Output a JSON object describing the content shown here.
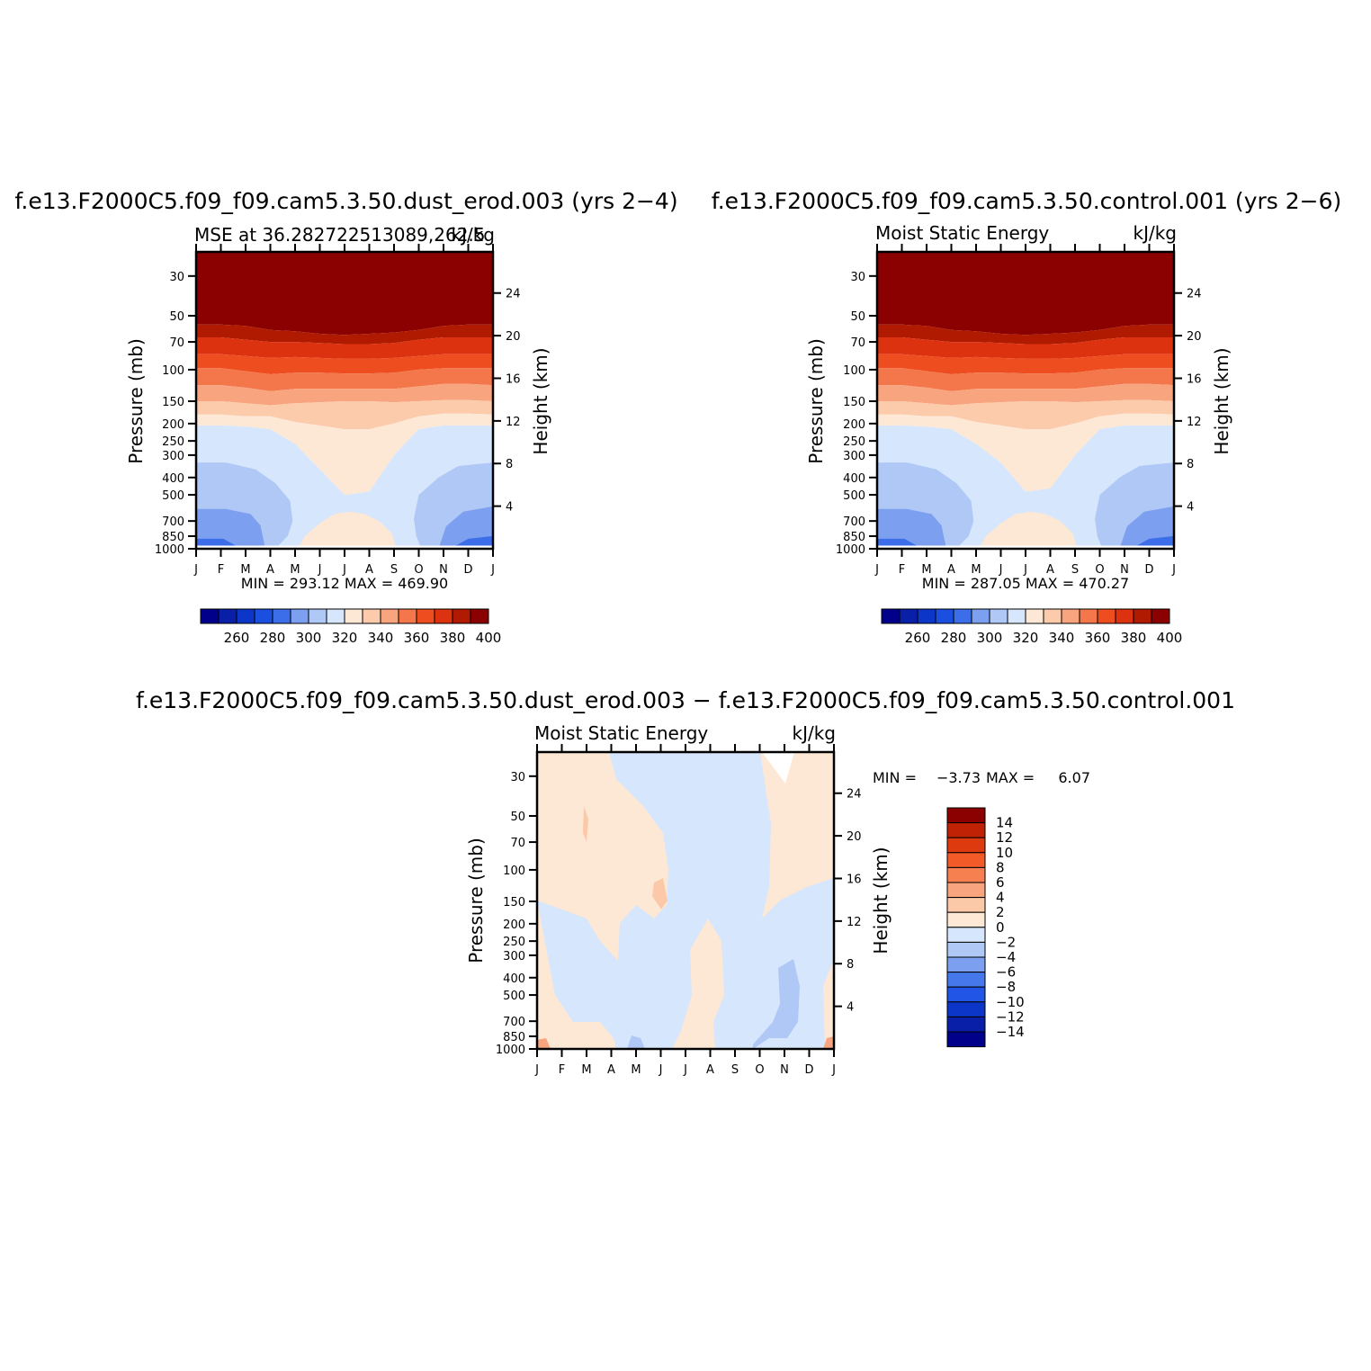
{
  "chart_data": [
    {
      "type": "heatmap",
      "title": "f.e13.F2000C5.f09_f09.cam5.3.50.dust_erod.003 (yrs 2−4)",
      "subtitle_left": "MSE at 36.282722513089,262.5",
      "subtitle_right": "kJ/kg",
      "xlabel": "",
      "ylabel": "Pressure (mb)",
      "ylabel_right": "Height (km)",
      "x_ticks": [
        "J",
        "F",
        "M",
        "A",
        "M",
        "J",
        "J",
        "A",
        "S",
        "O",
        "N",
        "D",
        "J"
      ],
      "y_ticks": [
        30,
        50,
        70,
        100,
        150,
        200,
        250,
        300,
        400,
        500,
        700,
        850,
        1000
      ],
      "y_ticks_right": [
        24,
        20,
        16,
        12,
        8,
        4
      ],
      "y_scale": "log",
      "ylim": [
        1000,
        22
      ],
      "stats": "MIN = 293.12 MAX = 469.90",
      "colorbar_labels": [
        260,
        280,
        300,
        320,
        340,
        360,
        380,
        400
      ],
      "approx_levels": [
        {
          "p": 22,
          "v": 470
        },
        {
          "p": 55,
          "v": 410
        },
        {
          "p": 70,
          "v": 395
        },
        {
          "p": 100,
          "v": 375
        },
        {
          "p": 150,
          "v": 350
        },
        {
          "p": 200,
          "v": 335
        },
        {
          "p": 300,
          "v": 318
        },
        {
          "p": 500,
          "v": 312
        },
        {
          "p": 850,
          "v": 300
        },
        {
          "p": 1000,
          "v": 293
        }
      ]
    },
    {
      "type": "heatmap",
      "title": "f.e13.F2000C5.f09_f09.cam5.3.50.control.001 (yrs 2−6)",
      "subtitle_left": "Moist Static Energy",
      "subtitle_right": "kJ/kg",
      "ylabel": "Pressure (mb)",
      "ylabel_right": "Height (km)",
      "x_ticks": [
        "J",
        "F",
        "M",
        "A",
        "M",
        "J",
        "J",
        "A",
        "S",
        "O",
        "N",
        "D",
        "J"
      ],
      "y_ticks": [
        30,
        50,
        70,
        100,
        150,
        200,
        250,
        300,
        400,
        500,
        700,
        850,
        1000
      ],
      "y_ticks_right": [
        24,
        20,
        16,
        12,
        8,
        4
      ],
      "y_scale": "log",
      "stats": "MIN = 287.05 MAX = 470.27",
      "colorbar_labels": [
        260,
        280,
        300,
        320,
        340,
        360,
        380,
        400
      ]
    },
    {
      "type": "heatmap",
      "title": "f.e13.F2000C5.f09_f09.cam5.3.50.dust_erod.003 − f.e13.F2000C5.f09_f09.cam5.3.50.control.001",
      "subtitle_left": "Moist Static Energy",
      "subtitle_right": "kJ/kg",
      "ylabel": "Pressure (mb)",
      "ylabel_right": "Height (km)",
      "x_ticks": [
        "J",
        "F",
        "M",
        "A",
        "M",
        "J",
        "J",
        "A",
        "S",
        "O",
        "N",
        "D",
        "J"
      ],
      "y_ticks": [
        30,
        50,
        70,
        100,
        150,
        200,
        250,
        300,
        400,
        500,
        700,
        850,
        1000
      ],
      "y_ticks_right": [
        24,
        20,
        16,
        12,
        8,
        4
      ],
      "y_scale": "log",
      "stats_min_label": "MIN =",
      "stats_min": "−3.73",
      "stats_max_label": "MAX =",
      "stats_max": "6.07",
      "colorbar_labels": [
        "14",
        "12",
        "10",
        "8",
        "6",
        "4",
        "2",
        "0",
        "−2",
        "−4",
        "−6",
        "−8",
        "−10",
        "−12",
        "−14"
      ]
    }
  ],
  "colors": {
    "mse_scale": [
      "#00008b",
      "#0a1fa8",
      "#0b36c8",
      "#1a4fe0",
      "#3b6ee8",
      "#7c9ff0",
      "#b0c8f6",
      "#d6e6fc",
      "#fde8d6",
      "#fccbac",
      "#f8a47e",
      "#f4774b",
      "#ee4d20",
      "#dc3210",
      "#b01a00",
      "#8b0000"
    ],
    "diff_scale": [
      "#8b0000",
      "#c02205",
      "#dd3a10",
      "#f25a28",
      "#f6804f",
      "#f8a47e",
      "#fcc9a8",
      "#fde8d6",
      "#d6e6fc",
      "#b0c8f6",
      "#7c9ff0",
      "#4678ec",
      "#2155e6",
      "#0b36c8",
      "#0a1fa8",
      "#00008b"
    ]
  }
}
